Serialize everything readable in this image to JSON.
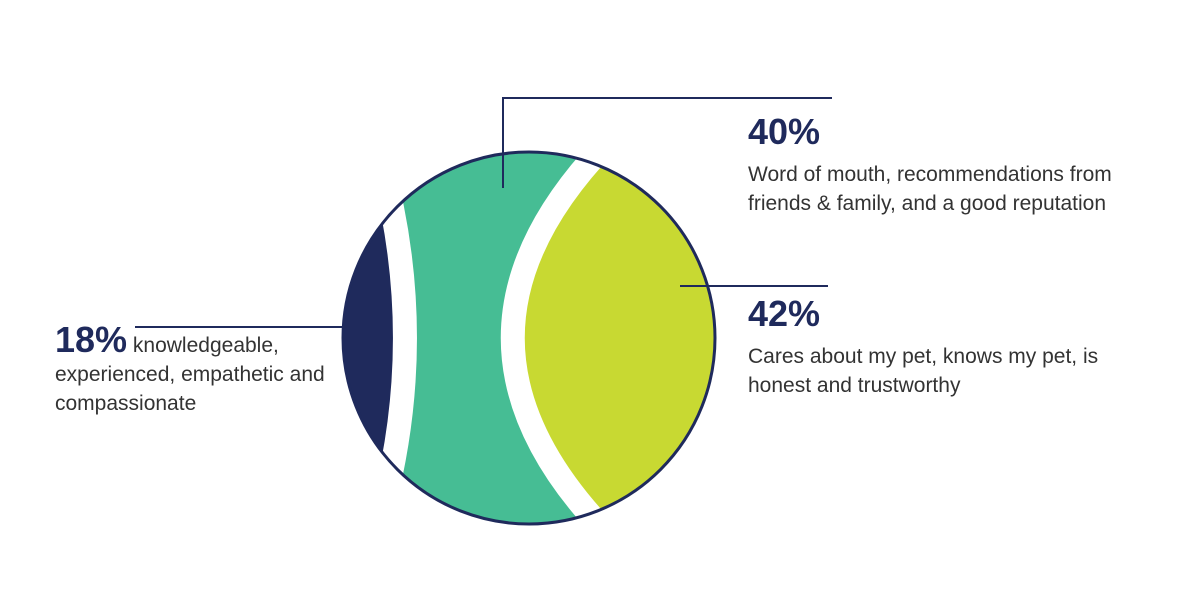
{
  "chart_data": {
    "type": "segmented-circle",
    "categories": [
      "knowledgeable, experienced, empathetic and compassionate",
      "Word of mouth, recommendations from friends & family, and a good reputation",
      "Cares about my pet, knows my pet, is honest and trustworthy"
    ],
    "values": [
      18,
      40,
      42
    ],
    "value_labels": [
      "18%",
      "40%",
      "42%"
    ],
    "colors": [
      "#1f2a5c",
      "#46bd94",
      "#c8d932"
    ]
  }
}
